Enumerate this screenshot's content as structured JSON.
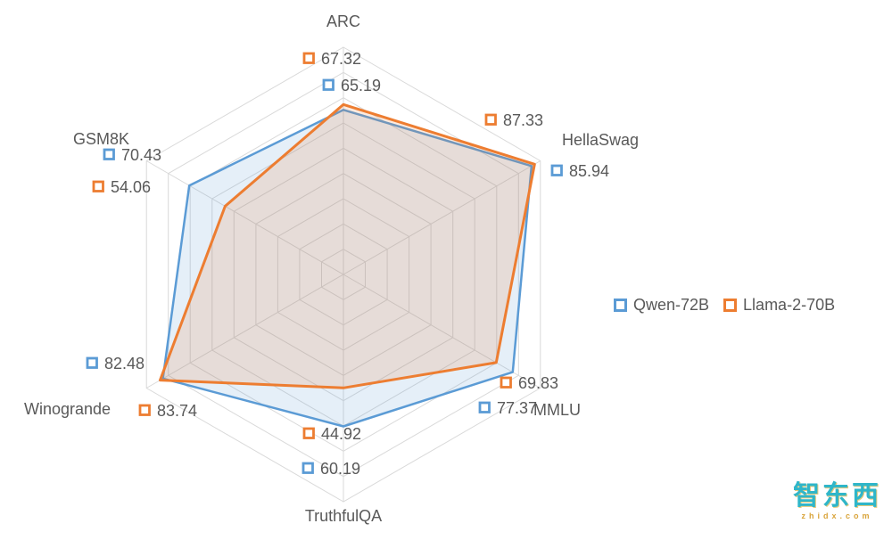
{
  "chart_data": {
    "type": "radar",
    "title": "",
    "categories": [
      "ARC",
      "HellaSwag",
      "MMLU",
      "TruthfulQA",
      "Winogrande",
      "GSM8K"
    ],
    "axis_max": 90,
    "grid_step": 10,
    "grid_color": "#D9D9D9",
    "label_color": "#595959",
    "legend_position": "right",
    "series": [
      {
        "name": "Qwen-72B",
        "color": "#5B9BD5",
        "fill": "rgba(91,155,213,0.16)",
        "values": [
          65.19,
          85.94,
          77.37,
          60.19,
          82.48,
          70.43
        ],
        "labels": [
          "65.19",
          "85.94",
          "77.37",
          "60.19",
          "82.48",
          "70.43"
        ]
      },
      {
        "name": "Llama-2-70B",
        "color": "#ED7D31",
        "fill": "rgba(237,125,49,0.16)",
        "values": [
          67.32,
          87.33,
          69.83,
          44.92,
          83.74,
          54.06
        ],
        "labels": [
          "67.32",
          "87.33",
          "69.83",
          "44.92",
          "83.74",
          "54.06"
        ]
      }
    ]
  },
  "watermark": {
    "text": "智东西",
    "subtext": "zhidx.com"
  }
}
